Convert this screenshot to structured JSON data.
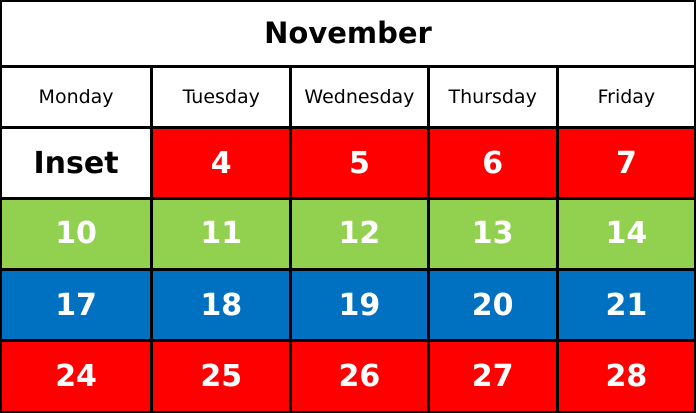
{
  "title": "November",
  "headers": [
    "Monday",
    "Tuesday",
    "Wednesday",
    "Thursday",
    "Friday"
  ],
  "colors": {
    "red": "#FF0000",
    "green": "#92D050",
    "blue": "#0070C0"
  },
  "weeks": [
    {
      "color": "#FF0000",
      "days": [
        "Inset",
        "4",
        "5",
        "6",
        "7"
      ]
    },
    {
      "color": "#92D050",
      "days": [
        "10",
        "11",
        "12",
        "13",
        "14"
      ]
    },
    {
      "color": "#0070C0",
      "days": [
        "17",
        "18",
        "19",
        "20",
        "21"
      ]
    },
    {
      "color": "#FF0000",
      "days": [
        "24",
        "25",
        "26",
        "27",
        "28"
      ]
    }
  ]
}
